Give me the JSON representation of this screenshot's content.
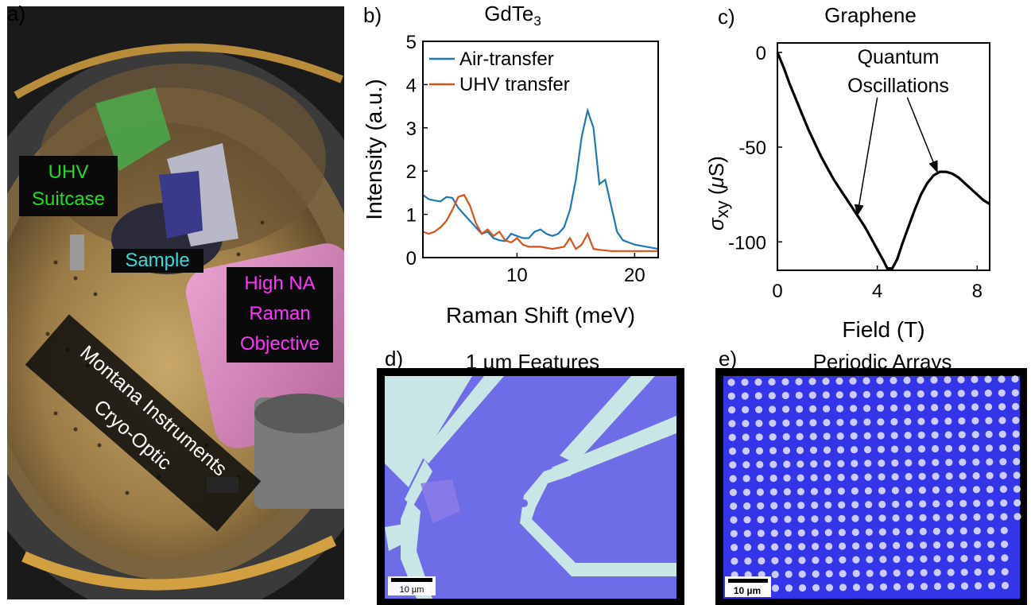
{
  "panels": {
    "a": {
      "label": "a)",
      "callouts": {
        "uhv_suitcase": [
          "UHV",
          "Suitcase"
        ],
        "sample": "Sample",
        "objective": [
          "High NA",
          "Raman",
          "Objective"
        ],
        "cryostat": [
          "Montana Instruments",
          "Cryo-Optic"
        ]
      },
      "colors": {
        "uhv": "#22dd22",
        "sample": "#33dddd",
        "objective": "#ff33ff",
        "cryostat": "#ffffff"
      }
    },
    "b": {
      "label": "b)",
      "title_main": "GdTe",
      "title_sub": "3"
    },
    "c": {
      "label": "c)",
      "title": "Graphene",
      "ylabel_sigma": "σ",
      "ylabel_sub": "xy",
      "ylabel_unit_open": " (",
      "ylabel_mu": "μ",
      "ylabel_unit_close": "S)",
      "annotation": [
        "Quantum",
        "Oscillations"
      ]
    },
    "d": {
      "label": "d)",
      "title": "1 µm Features",
      "scalebar": "10 µm"
    },
    "e": {
      "label": "e)",
      "title": "Periodic Arrays",
      "scalebar": "10 µm"
    }
  },
  "chart_data": [
    {
      "type": "line",
      "panel": "b",
      "xlabel": "Raman Shift (meV)",
      "ylabel": "Intensity (a.u.)",
      "xlim": [
        2,
        22
      ],
      "ylim": [
        0,
        5
      ],
      "xticks": [
        10,
        20
      ],
      "yticks": [
        0,
        1,
        2,
        3,
        4,
        5
      ],
      "legend_position": "top-left",
      "series": [
        {
          "name": "Air-transfer",
          "color": "#1f77b4",
          "x": [
            2,
            2.5,
            3,
            3.5,
            4,
            4.5,
            5,
            5.5,
            6,
            6.5,
            7,
            7.5,
            8,
            8.5,
            9,
            9.5,
            10,
            10.5,
            11,
            11.5,
            12,
            12.5,
            13,
            13.5,
            14,
            14.5,
            15,
            15.5,
            16,
            16.5,
            17,
            17.5,
            18,
            18.5,
            19,
            19.5,
            20,
            21,
            22
          ],
          "y": [
            1.45,
            1.35,
            1.32,
            1.3,
            1.4,
            1.38,
            1.15,
            1.0,
            0.85,
            0.7,
            0.55,
            0.6,
            0.45,
            0.4,
            0.38,
            0.55,
            0.5,
            0.45,
            0.45,
            0.6,
            0.65,
            0.55,
            0.5,
            0.55,
            0.7,
            1.1,
            1.8,
            2.8,
            3.4,
            3.0,
            1.7,
            1.8,
            1.2,
            0.6,
            0.4,
            0.35,
            0.3,
            0.25,
            0.2
          ]
        },
        {
          "name": "UHV transfer",
          "color": "#d95319",
          "x": [
            2,
            2.5,
            3,
            3.5,
            4,
            4.5,
            5,
            5.5,
            6,
            6.5,
            7,
            7.5,
            8,
            8.5,
            9,
            9.5,
            10,
            10.5,
            11,
            12,
            13,
            14,
            14.5,
            15,
            15.5,
            16,
            16.5,
            17,
            18,
            20,
            22
          ],
          "y": [
            0.6,
            0.55,
            0.6,
            0.7,
            0.85,
            1.1,
            1.4,
            1.45,
            1.2,
            0.8,
            0.55,
            0.65,
            0.5,
            0.6,
            0.4,
            0.35,
            0.45,
            0.3,
            0.25,
            0.25,
            0.2,
            0.25,
            0.45,
            0.2,
            0.3,
            0.55,
            0.2,
            0.18,
            0.15,
            0.15,
            0.15
          ]
        }
      ]
    },
    {
      "type": "line",
      "panel": "c",
      "xlabel": "Field (T)",
      "xlim": [
        0,
        8.5
      ],
      "ylim": [
        -115,
        5
      ],
      "xticks": [
        0,
        4,
        8
      ],
      "yticks": [
        0,
        -50,
        -100
      ],
      "series": [
        {
          "color": "#000000",
          "x": [
            0,
            0.25,
            0.5,
            0.75,
            1,
            1.25,
            1.5,
            1.75,
            2,
            2.25,
            2.5,
            2.75,
            3,
            3.25,
            3.5,
            3.75,
            4,
            4.25,
            4.4,
            4.6,
            4.8,
            5,
            5.25,
            5.5,
            5.75,
            6,
            6.25,
            6.5,
            6.75,
            7,
            7.25,
            7.5,
            7.75,
            8,
            8.25,
            8.5
          ],
          "y": [
            0,
            -8,
            -17,
            -25,
            -33,
            -41,
            -48,
            -55,
            -61,
            -67,
            -72,
            -77,
            -82,
            -87,
            -92,
            -98,
            -104,
            -110,
            -114,
            -114,
            -109,
            -101,
            -92,
            -83,
            -75,
            -69,
            -65,
            -63,
            -63,
            -64,
            -66,
            -69,
            -72,
            -75,
            -78,
            -80
          ]
        }
      ],
      "arrows": [
        {
          "from": [
            4.0,
            -7
          ],
          "to": [
            3.2,
            -86
          ]
        },
        {
          "from": [
            5.2,
            -7
          ],
          "to": [
            6.4,
            -63
          ]
        }
      ]
    }
  ]
}
